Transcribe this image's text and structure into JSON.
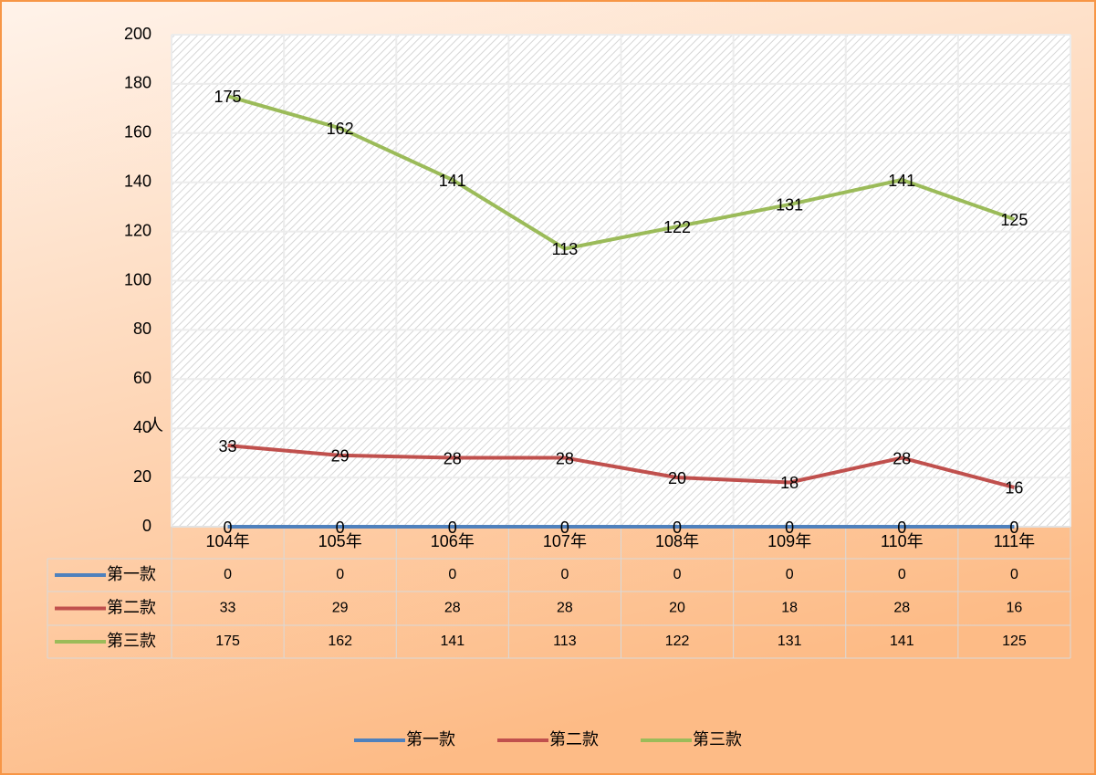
{
  "chart_data": {
    "type": "line",
    "y_label": "人",
    "categories": [
      "104年",
      "105年",
      "106年",
      "107年",
      "108年",
      "109年",
      "110年",
      "111年"
    ],
    "series": [
      {
        "name": "第一款",
        "color": "#4f81bd",
        "values": [
          0,
          0,
          0,
          0,
          0,
          0,
          0,
          0
        ]
      },
      {
        "name": "第二款",
        "color": "#c0504d",
        "values": [
          33,
          29,
          28,
          28,
          20,
          18,
          28,
          16
        ]
      },
      {
        "name": "第三款",
        "color": "#9bbb59",
        "values": [
          175,
          162,
          141,
          113,
          122,
          131,
          141,
          125
        ]
      }
    ],
    "ylim": [
      0,
      200
    ],
    "yticks": [
      0,
      20,
      40,
      60,
      80,
      100,
      120,
      140,
      160,
      180,
      200
    ],
    "grid": true,
    "legend": "bottom",
    "data_table": true
  }
}
